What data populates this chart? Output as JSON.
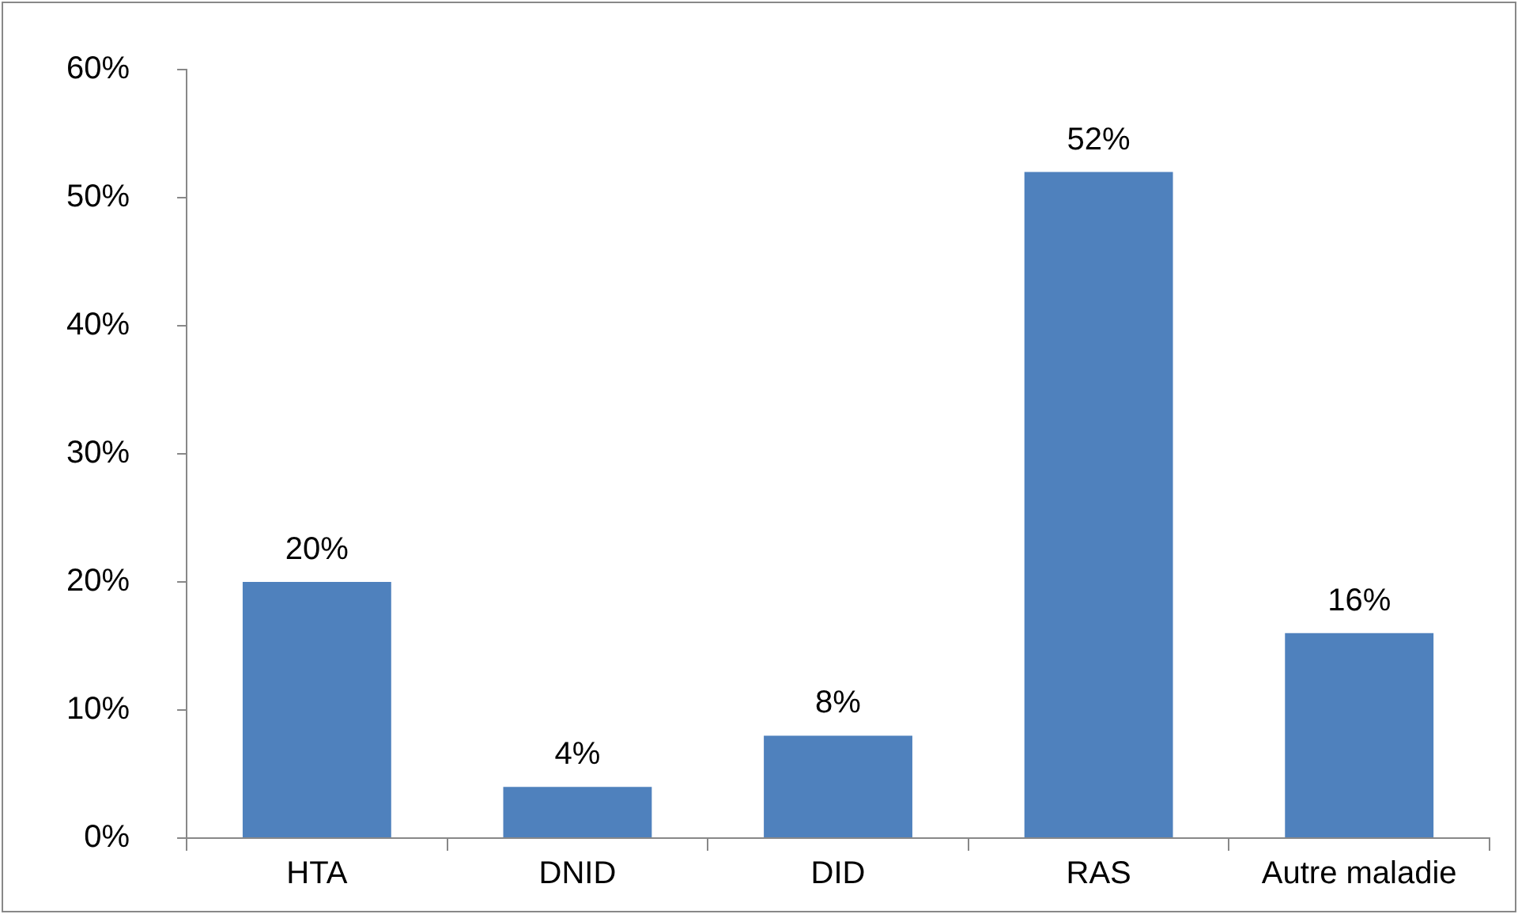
{
  "chart_data": {
    "type": "bar",
    "categories": [
      "HTA",
      "DNID",
      "DID",
      "RAS",
      "Autre maladie"
    ],
    "values": [
      20,
      4,
      8,
      52,
      16
    ],
    "color": "#4f81bd",
    "value_labels": [
      "20%",
      "4%",
      "8%",
      "52%",
      "16%"
    ],
    "ylim": [
      0,
      60
    ],
    "yticks": [
      {
        "value": 0,
        "label": "0%"
      },
      {
        "value": 10,
        "label": "10%"
      },
      {
        "value": 20,
        "label": "20%"
      },
      {
        "value": 30,
        "label": "30%"
      },
      {
        "value": 40,
        "label": "40%"
      },
      {
        "value": 50,
        "label": "50%"
      },
      {
        "value": 60,
        "label": "60%"
      }
    ],
    "grid": false,
    "legend": false
  }
}
